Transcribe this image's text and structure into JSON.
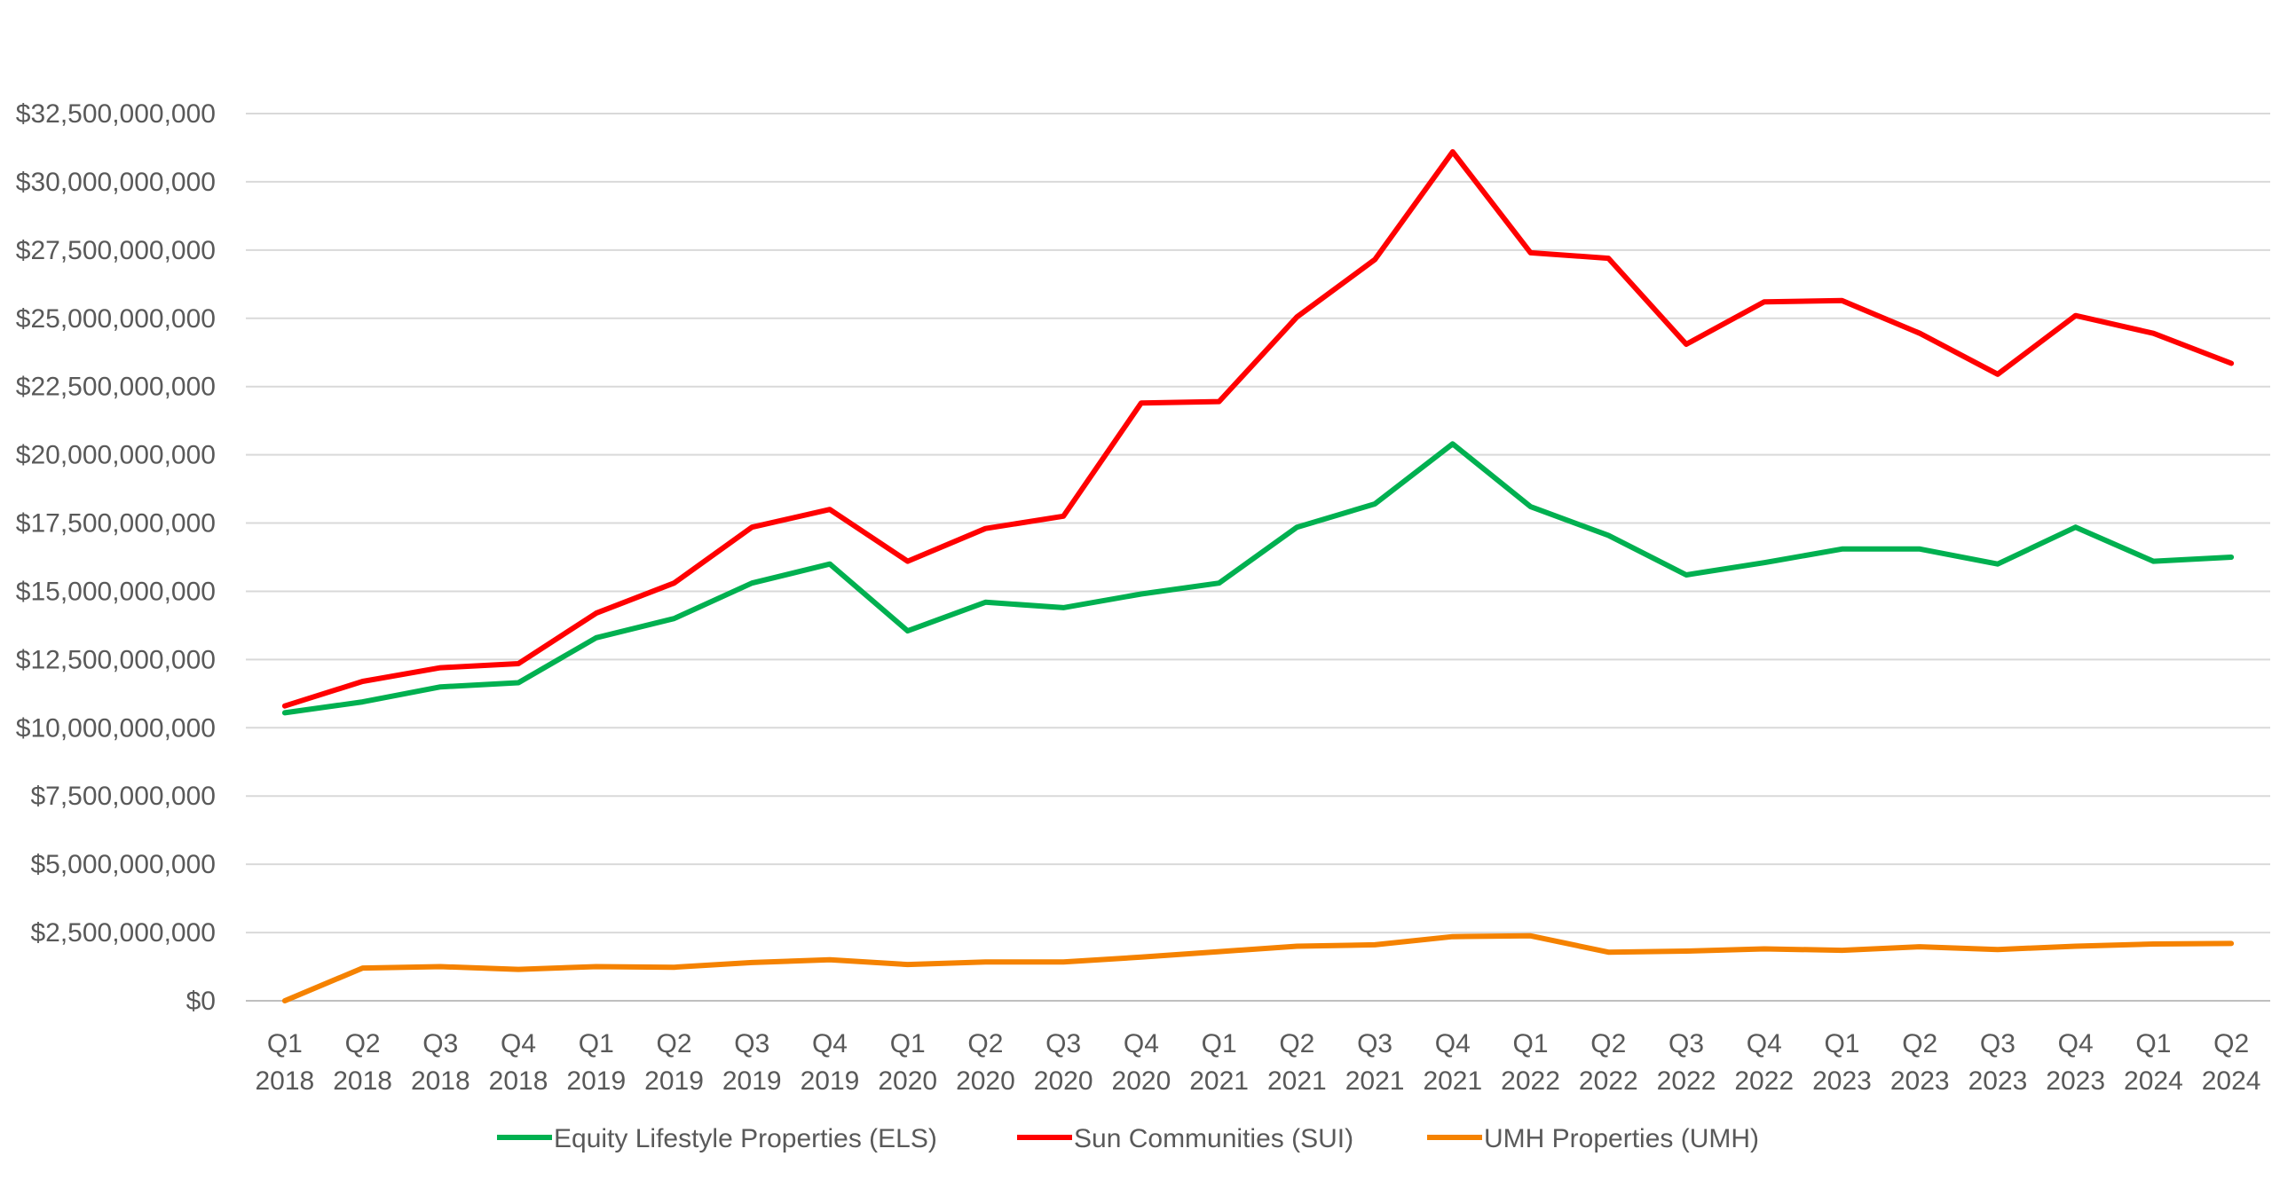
{
  "chart_data": {
    "type": "line",
    "title": "",
    "xlabel": "",
    "ylabel": "",
    "categories": [
      [
        "Q1",
        "2018"
      ],
      [
        "Q2",
        "2018"
      ],
      [
        "Q3",
        "2018"
      ],
      [
        "Q4",
        "2018"
      ],
      [
        "Q1",
        "2019"
      ],
      [
        "Q2",
        "2019"
      ],
      [
        "Q3",
        "2019"
      ],
      [
        "Q4",
        "2019"
      ],
      [
        "Q1",
        "2020"
      ],
      [
        "Q2",
        "2020"
      ],
      [
        "Q3",
        "2020"
      ],
      [
        "Q4",
        "2020"
      ],
      [
        "Q1",
        "2021"
      ],
      [
        "Q2",
        "2021"
      ],
      [
        "Q3",
        "2021"
      ],
      [
        "Q4",
        "2021"
      ],
      [
        "Q1",
        "2022"
      ],
      [
        "Q2",
        "2022"
      ],
      [
        "Q3",
        "2022"
      ],
      [
        "Q4",
        "2022"
      ],
      [
        "Q1",
        "2023"
      ],
      [
        "Q2",
        "2023"
      ],
      [
        "Q3",
        "2023"
      ],
      [
        "Q4",
        "2023"
      ],
      [
        "Q1",
        "2024"
      ],
      [
        "Q2",
        "2024"
      ]
    ],
    "ylim": [
      0,
      32500000000
    ],
    "yticks": [
      {
        "value": 0,
        "label": "$0"
      },
      {
        "value": 2500000000,
        "label": "$2,500,000,000"
      },
      {
        "value": 5000000000,
        "label": "$5,000,000,000"
      },
      {
        "value": 7500000000,
        "label": "$7,500,000,000"
      },
      {
        "value": 10000000000,
        "label": "$10,000,000,000"
      },
      {
        "value": 12500000000,
        "label": "$12,500,000,000"
      },
      {
        "value": 15000000000,
        "label": "$15,000,000,000"
      },
      {
        "value": 17500000000,
        "label": "$17,500,000,000"
      },
      {
        "value": 20000000000,
        "label": "$20,000,000,000"
      },
      {
        "value": 22500000000,
        "label": "$22,500,000,000"
      },
      {
        "value": 25000000000,
        "label": "$25,000,000,000"
      },
      {
        "value": 27500000000,
        "label": "$27,500,000,000"
      },
      {
        "value": 30000000000,
        "label": "$30,000,000,000"
      },
      {
        "value": 32500000000,
        "label": "$32,500,000,000"
      }
    ],
    "grid": true,
    "legend_position": "bottom",
    "series": [
      {
        "name": "Equity Lifestyle Properties (ELS)",
        "color": "#00b050",
        "values": [
          10550000000,
          10950000000,
          11500000000,
          11650000000,
          13300000000,
          14000000000,
          15300000000,
          16000000000,
          13550000000,
          14600000000,
          14400000000,
          14900000000,
          15300000000,
          17350000000,
          18200000000,
          20400000000,
          18100000000,
          17050000000,
          15600000000,
          16050000000,
          16550000000,
          16550000000,
          16000000000,
          17350000000,
          16100000000,
          16250000000
        ]
      },
      {
        "name": "Sun Communities (SUI)",
        "color": "#ff0000",
        "values": [
          10800000000,
          11700000000,
          12200000000,
          12350000000,
          14200000000,
          15300000000,
          17350000000,
          18000000000,
          16100000000,
          17300000000,
          17750000000,
          21900000000,
          21950000000,
          25050000000,
          27150000000,
          31100000000,
          27400000000,
          27200000000,
          24050000000,
          25600000000,
          25650000000,
          24450000000,
          22950000000,
          25100000000,
          24450000000,
          23350000000
        ]
      },
      {
        "name": "UMH Properties (UMH)",
        "color": "#f58200",
        "values": [
          0,
          1200000000,
          1250000000,
          1150000000,
          1250000000,
          1230000000,
          1400000000,
          1500000000,
          1330000000,
          1420000000,
          1420000000,
          1600000000,
          1800000000,
          2000000000,
          2050000000,
          2350000000,
          2380000000,
          1780000000,
          1820000000,
          1900000000,
          1850000000,
          1980000000,
          1880000000,
          2000000000,
          2080000000,
          2100000000
        ]
      }
    ]
  }
}
